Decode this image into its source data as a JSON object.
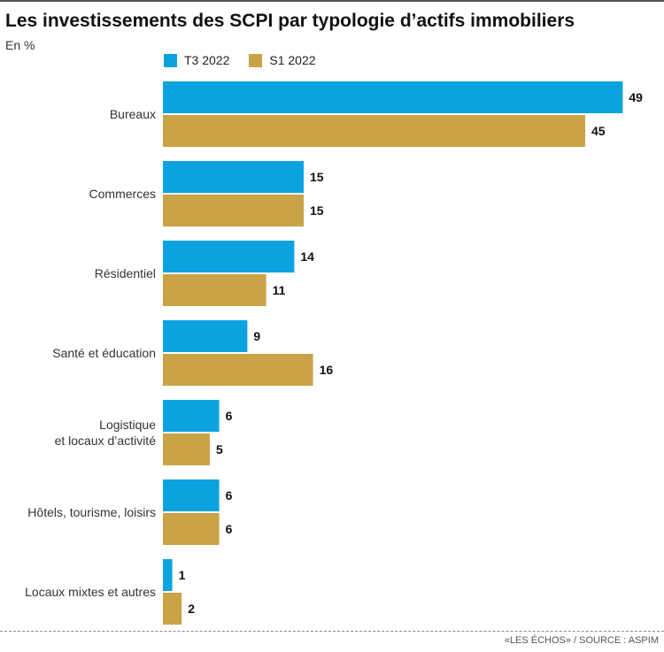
{
  "title": "Les investissements des SCPI par typologie d’actifs immobiliers",
  "subtitle": "En %",
  "source": "«LES ÉCHOS» / SOURCE : ASPIM",
  "colors": {
    "series1": "#0aa3e0",
    "series2": "#c9a345"
  },
  "chart_data": {
    "type": "bar",
    "orientation": "horizontal",
    "categories": [
      [
        "Bureaux"
      ],
      [
        "Commerces"
      ],
      [
        "Résidentiel"
      ],
      [
        "Santé et éducation"
      ],
      [
        "Logistique",
        "et locaux d’activité"
      ],
      [
        "Hôtels, tourisme, loisirs"
      ],
      [
        "Locaux mixtes et autres"
      ]
    ],
    "series": [
      {
        "name": "T3 2022",
        "values": [
          49,
          15,
          14,
          9,
          6,
          6,
          1
        ]
      },
      {
        "name": "S1 2022",
        "values": [
          45,
          15,
          11,
          16,
          5,
          6,
          2
        ]
      }
    ],
    "xlim": [
      0,
      49
    ],
    "legend": "top-left",
    "grid": false
  }
}
